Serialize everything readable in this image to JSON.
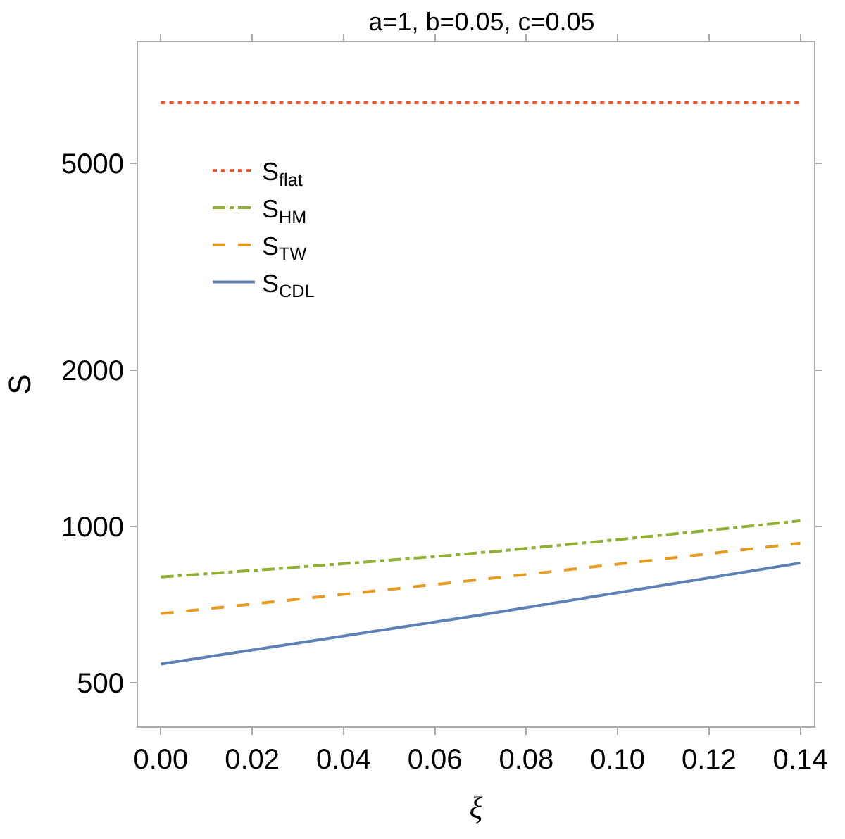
{
  "chart_data": {
    "type": "line",
    "title": "a=1, b=0.05, c=0.05",
    "xlabel": "ξ",
    "ylabel": "S",
    "x": [
      0,
      0.07,
      0.14
    ],
    "series": [
      {
        "name": "S$_{flat}$",
        "color": "#f0512a",
        "values": [
          6540,
          6540,
          6540
        ],
        "line_style": "dotted"
      },
      {
        "name": "S$_{HM}$",
        "color": "#8fb032",
        "values": [
          799,
          890,
          1025
        ],
        "line_style": "dashdot"
      },
      {
        "name": "S$_{TW}$",
        "color": "#e69a1f",
        "values": [
          679,
          790,
          928
        ],
        "line_style": "dashed"
      },
      {
        "name": "S$_{CDL}$",
        "color": "#5e81b5",
        "values": [
          543,
          675,
          850
        ],
        "line_style": "solid"
      }
    ],
    "xlim": [
      -0.005,
      0.143
    ],
    "xticks": [
      {
        "value": 0,
        "label": "0.00"
      },
      0.02,
      0.04,
      0.06,
      {
        "value": 0.08,
        "label": "0.08"
      },
      {
        "value": 0.1,
        "label": "0.10"
      },
      0.12,
      0.14
    ],
    "ylim": [
      412,
      8550
    ],
    "yticks": [
      500,
      1000,
      2000,
      5000
    ],
    "log": "y",
    "legend": "top left",
    "marker": "none"
  }
}
